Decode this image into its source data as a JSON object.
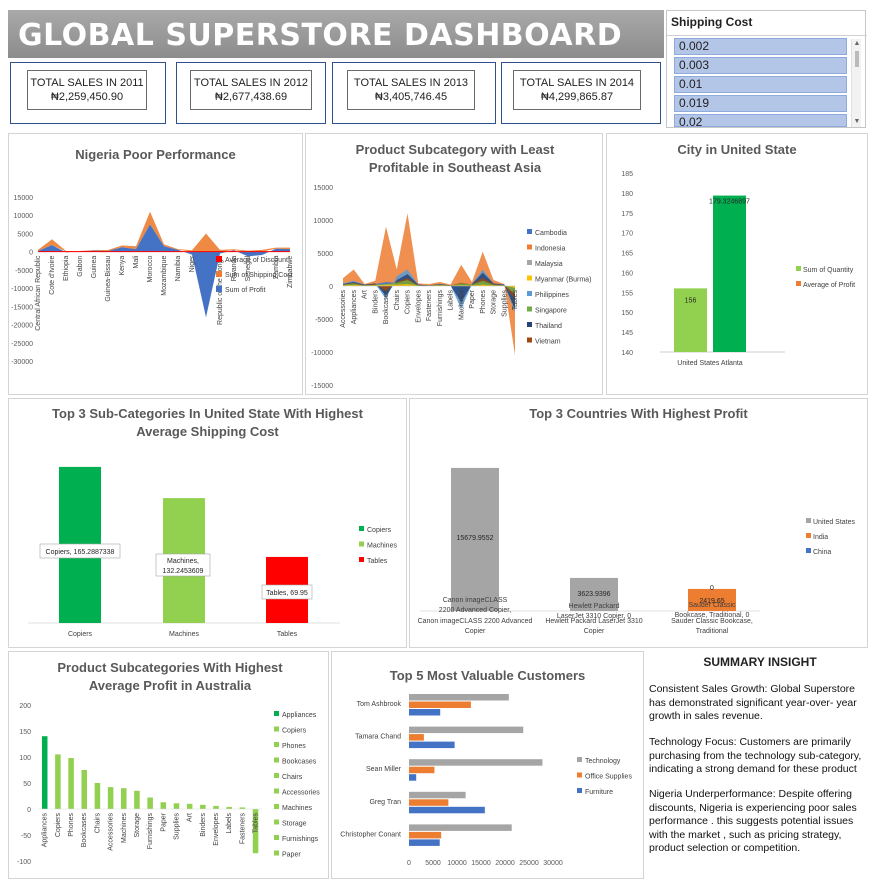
{
  "dashboard_title": "GLOBAL SUPERSTORE DASHBOARD",
  "kpis": [
    {
      "label": "TOTAL SALES IN 2011",
      "value": "₦2,259,450.90"
    },
    {
      "label": "TOTAL SALES IN 2012",
      "value": "₦2,677,438.69"
    },
    {
      "label": "TOTAL SALES IN 2013",
      "value": "₦3,405,746.45"
    },
    {
      "label": "TOTAL SALES IN 2014",
      "value": "₦4,299,865.87"
    }
  ],
  "slicer": {
    "title": "Shipping Cost",
    "items": [
      "0.002",
      "0.003",
      "0.01",
      "0.019",
      "0.02"
    ]
  },
  "colors": {
    "profit_blue": "#4472c4",
    "shipping_orange": "#ed7d31",
    "discount_red": "#ff0000",
    "gray": "#a5a5a5",
    "green_dark": "#00b050",
    "green_light": "#92d050",
    "red": "#ff0000"
  },
  "chart_data": [
    {
      "id": "nigeria",
      "type": "area",
      "title": "Nigeria Poor  Performance",
      "y_ticks": [
        "15000",
        "10000",
        "5000",
        "0",
        "-5000",
        "-10000",
        "-15000",
        "-20000",
        "-25000",
        "-30000"
      ],
      "ylim": [
        -30000,
        15000
      ],
      "categories": [
        "Central African Republic",
        "Cote d'Ivoire",
        "Ethiopia",
        "Gabon",
        "Guinea",
        "Guinea-Bissau",
        "Kenya",
        "Mali",
        "Morocco",
        "Mozambique",
        "Namibia",
        "Niger",
        "Nigeria",
        "Republic of the Congo",
        "Rwanda",
        "Senegal",
        "Tanzania",
        "Zambia",
        "Zimbabwe"
      ],
      "x_labels": [
        "Central African Republic",
        "Cote d'Ivoire",
        "Ethiopia",
        "Gabon",
        "Guinea",
        "Guinea-Bissau",
        "Kenya",
        "Mali",
        "Morocco",
        "Mozambique",
        "Namibia",
        "Niger",
        "",
        "Republic of the Congo",
        "Rwanda",
        "Senegal",
        "",
        "Zambia",
        "Zimbabwe"
      ],
      "series": [
        {
          "name": "Average of Discount",
          "values": [
            0,
            0,
            0,
            0,
            0,
            0,
            0,
            0,
            0,
            0,
            0,
            0,
            0,
            0,
            0,
            0,
            0,
            0,
            0
          ]
        },
        {
          "name": "Sum of Shipping Cost",
          "values": [
            300,
            1600,
            200,
            100,
            150,
            250,
            500,
            800,
            3500,
            500,
            200,
            400,
            5000,
            500,
            250,
            300,
            500,
            300,
            400
          ]
        },
        {
          "name": "Sum of Profit",
          "values": [
            200,
            1800,
            -200,
            100,
            300,
            200,
            1200,
            700,
            7500,
            1500,
            500,
            -800,
            -18000,
            -500,
            400,
            -1300,
            -900,
            800,
            700
          ]
        }
      ]
    },
    {
      "id": "sea",
      "type": "area",
      "title": "Product Subcategory with Least Profitable in Southeast Asia",
      "y_ticks": [
        "15000",
        "10000",
        "5000",
        "0",
        "-5000",
        "-10000",
        "-15000"
      ],
      "ylim": [
        -15000,
        15000
      ],
      "categories": [
        "Accessories",
        "Appliances",
        "Art",
        "Binders",
        "Bookcases",
        "Chairs",
        "Copiers",
        "Envelopes",
        "Fasteners",
        "Furnishings",
        "Labels",
        "Machines",
        "Paper",
        "Phones",
        "Storage",
        "Supplies",
        "Tables"
      ],
      "series": [
        {
          "name": "Cambodia",
          "values": [
            300,
            400,
            100,
            300,
            600,
            500,
            800,
            200,
            100,
            200,
            100,
            -800,
            200,
            900,
            300,
            200,
            -1500
          ]
        },
        {
          "name": "Indonesia",
          "values": [
            1200,
            2500,
            300,
            800,
            9000,
            2500,
            11000,
            400,
            300,
            600,
            200,
            3200,
            600,
            5200,
            900,
            300,
            -10500
          ]
        },
        {
          "name": "Malaysia",
          "values": [
            200,
            300,
            100,
            200,
            500,
            400,
            900,
            100,
            50,
            200,
            80,
            300,
            200,
            600,
            200,
            100,
            -900
          ]
        },
        {
          "name": "Myanmar (Burma)",
          "values": [
            100,
            150,
            50,
            100,
            200,
            200,
            300,
            50,
            30,
            80,
            30,
            100,
            80,
            200,
            80,
            50,
            -300
          ]
        },
        {
          "name": "Philippines",
          "values": [
            400,
            800,
            200,
            300,
            -2000,
            1500,
            2500,
            200,
            100,
            300,
            100,
            -3500,
            300,
            2500,
            400,
            200,
            -4000
          ]
        },
        {
          "name": "Singapore",
          "values": [
            200,
            400,
            100,
            200,
            300,
            500,
            900,
            100,
            50,
            200,
            60,
            400,
            200,
            800,
            200,
            100,
            -1200
          ]
        },
        {
          "name": "Thailand",
          "values": [
            300,
            600,
            200,
            400,
            -1500,
            900,
            1800,
            200,
            100,
            300,
            100,
            -2500,
            300,
            2000,
            400,
            200,
            -3500
          ]
        },
        {
          "name": "Vietnam",
          "values": [
            200,
            500,
            100,
            300,
            -800,
            600,
            1200,
            100,
            60,
            200,
            80,
            500,
            200,
            1200,
            300,
            100,
            -2000
          ]
        }
      ]
    },
    {
      "id": "city",
      "type": "bar",
      "title": "City in United State",
      "categories": [
        "United States Atlanta"
      ],
      "y_ticks": [
        "185",
        "180",
        "175",
        "170",
        "165",
        "160",
        "155",
        "150",
        "145",
        "140"
      ],
      "ylim": [
        140,
        185
      ],
      "series": [
        {
          "name": "Sum of Quantity",
          "values": [
            156
          ]
        },
        {
          "name": "Average of Profit",
          "values": [
            179.3246897
          ]
        }
      ],
      "data_labels": [
        "156",
        "179.3246897"
      ]
    },
    {
      "id": "us_shipping",
      "type": "bar",
      "title": "Top 3 Sub-Categories In United State With  Highest Average Shipping Cost",
      "categories": [
        "Copiers",
        "Machines",
        "Tables"
      ],
      "values": [
        165.2887338,
        132.2453609,
        69.95
      ],
      "ylim": [
        0,
        180
      ],
      "series": [
        {
          "name": "Copiers"
        },
        {
          "name": "Machines"
        },
        {
          "name": "Tables"
        }
      ],
      "callouts": [
        "Copiers, 165.2887338",
        "Machines,\n132.2453609",
        "Tables, 69.95"
      ]
    },
    {
      "id": "countries",
      "type": "bar",
      "title": "Top 3 Countries With Highest Profit",
      "categories": [
        "Canon imageCLASS 2200 Advanced Copier",
        "Hewlett Packard LaserJet 3310 Copier",
        "Sauder Classic Bookcase, Traditional"
      ],
      "series": [
        {
          "name": "United States",
          "values": [
            15679.9552,
            3623.9396,
            0
          ]
        },
        {
          "name": "India",
          "values": [
            0,
            0,
            2419.65
          ]
        },
        {
          "name": "China",
          "values": [
            0,
            0,
            0
          ]
        }
      ],
      "ylim": [
        0,
        16000
      ],
      "data_labels": [
        "15679.9552",
        "3623.9396",
        "2419.65",
        "0"
      ],
      "point_labels": [
        "Canon imageCLASS 2200 Advanced Copier,",
        "Hewlett Packard LaserJet 3310 Copier, 0",
        "Sauder Classic Bookcase, Traditional, 0"
      ]
    },
    {
      "id": "australia",
      "type": "bar",
      "title": "Product Subcategories With Highest Average Profit in Australia",
      "y_ticks": [
        "200",
        "150",
        "100",
        "50",
        "0",
        "-50",
        "-100"
      ],
      "ylim": [
        -100,
        200
      ],
      "categories": [
        "Appliances",
        "Copiers",
        "Phones",
        "Bookcases",
        "Chairs",
        "Accessories",
        "Machines",
        "Storage",
        "Furnishings",
        "Paper",
        "Supplies",
        "Art",
        "Binders",
        "Envelopes",
        "Labels",
        "Fasteners",
        "Tables"
      ],
      "values": [
        140,
        105,
        98,
        75,
        50,
        42,
        40,
        35,
        22,
        13,
        11,
        10,
        8,
        6,
        4,
        3,
        -85
      ],
      "legend": [
        "Appliances",
        "Copiers",
        "Phones",
        "Bookcases",
        "Chairs",
        "Accessories",
        "Machines",
        "Storage",
        "Furnishings",
        "Paper"
      ]
    },
    {
      "id": "customers",
      "type": "bar",
      "title": "Top 5 Most  Valuable Customers",
      "categories": [
        "Tom Ashbrook",
        "Tamara Chand",
        "Sean Miller",
        "Greg Tran",
        "Christopher Conant"
      ],
      "x_ticks": [
        "0",
        "5000",
        "10000",
        "15000",
        "20000",
        "25000",
        "30000"
      ],
      "xlim": [
        0,
        30000
      ],
      "series": [
        {
          "name": "Technology",
          "values": [
            20800,
            23800,
            27800,
            11800,
            21400
          ]
        },
        {
          "name": "Office Supplies",
          "values": [
            12900,
            3100,
            5300,
            8200,
            6700
          ]
        },
        {
          "name": "Furniture",
          "values": [
            6500,
            9500,
            1500,
            15800,
            6400
          ]
        }
      ]
    }
  ],
  "insights": {
    "title": "SUMMARY INSIGHT",
    "paragraphs": [
      "Consistent Sales Growth: Global Superstore has demonstrated significant year-over- year growth in sales revenue.",
      "Technology Focus: Customers are primarily purchasing from the technology sub-category, indicating a strong demand for these product",
      "Nigeria Underperformance: Despite offering discounts, Nigeria is experiencing poor sales performance . this suggests potential issues with the market , such as pricing strategy, product selection or competition."
    ]
  }
}
